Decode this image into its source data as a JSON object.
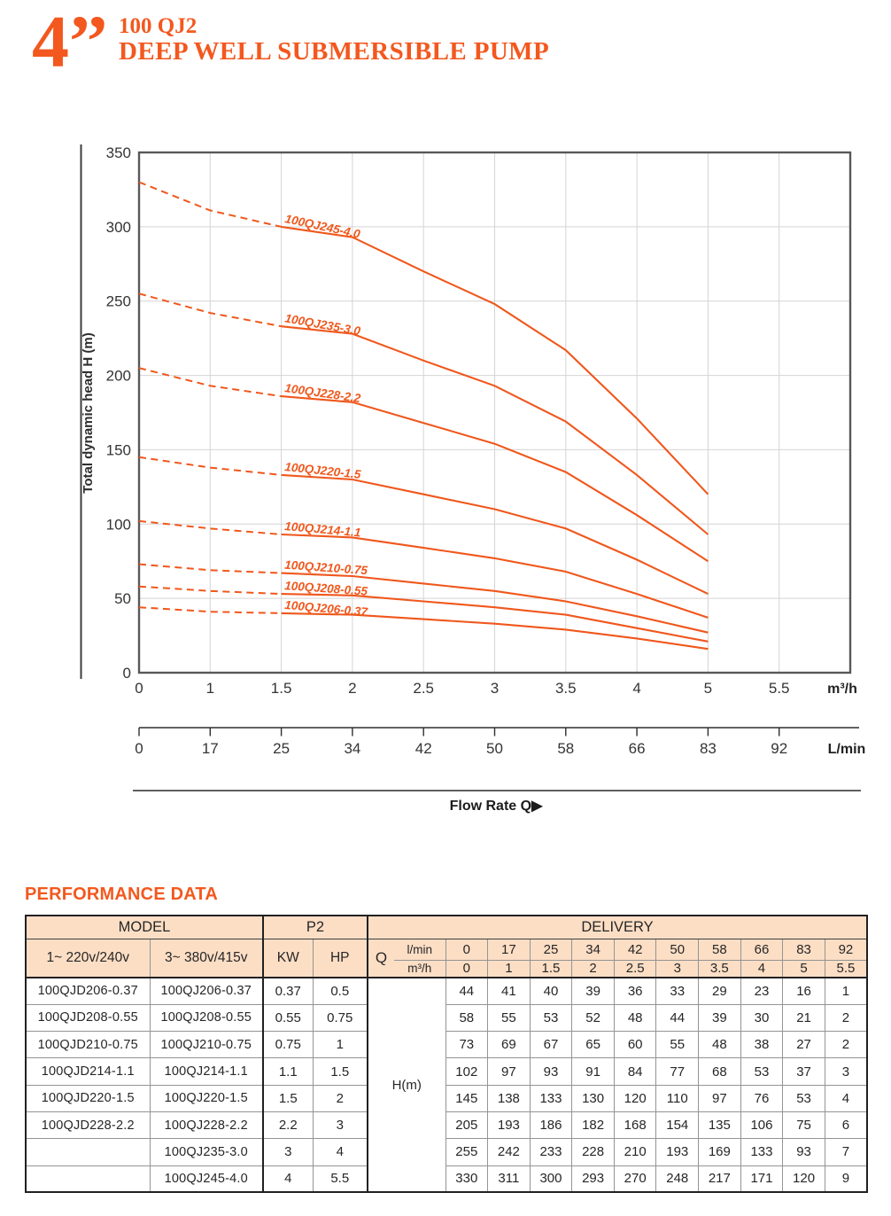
{
  "colors": {
    "accent": "#f3581e",
    "curve": "#f0571c",
    "table_header_bg": "#fcdec5"
  },
  "header": {
    "size_label": "4’’",
    "series": "100 QJ2",
    "title": "DEEP WELL SUBMERSIBLE PUMP"
  },
  "chart_data": {
    "type": "line",
    "title": "",
    "ylabel": "Total dynamic head H (m)",
    "ylim": [
      0,
      350
    ],
    "y_ticks": [
      0,
      50,
      100,
      150,
      200,
      250,
      300,
      350
    ],
    "x_ticks_m3h": [
      "0",
      "1",
      "1.5",
      "2",
      "2.5",
      "3",
      "3.5",
      "4",
      "5",
      "5.5"
    ],
    "x_ticks_lmin": [
      "0",
      "17",
      "25",
      "34",
      "42",
      "50",
      "58",
      "66",
      "83",
      "92"
    ],
    "x_unit_primary": "m³/h",
    "x_unit_secondary": "L/min",
    "flow_label": "Flow Rate Q",
    "grid": true,
    "legend_position": "on-curve",
    "series": [
      {
        "name": "100QJ245-4.0",
        "label_angle": 12,
        "values": [
          330,
          311,
          300,
          293,
          270,
          248,
          217,
          171,
          120
        ]
      },
      {
        "name": "100QJ235-3.0",
        "label_angle": 10,
        "values": [
          255,
          242,
          233,
          228,
          210,
          193,
          169,
          133,
          93
        ]
      },
      {
        "name": "100QJ228-2.2",
        "label_angle": 8,
        "values": [
          205,
          193,
          186,
          182,
          168,
          154,
          135,
          106,
          75
        ]
      },
      {
        "name": "100QJ220-1.5",
        "label_angle": 6,
        "values": [
          145,
          138,
          133,
          130,
          120,
          110,
          97,
          76,
          53
        ]
      },
      {
        "name": "100QJ214-1.1",
        "label_angle": 5,
        "values": [
          102,
          97,
          93,
          91,
          84,
          77,
          68,
          53,
          37
        ]
      },
      {
        "name": "100QJ210-0.75",
        "label_angle": 4,
        "values": [
          73,
          69,
          67,
          65,
          60,
          55,
          48,
          38,
          27
        ]
      },
      {
        "name": "100QJ208-0.55",
        "label_angle": 4,
        "values": [
          58,
          55,
          53,
          52,
          48,
          44,
          39,
          30,
          21
        ]
      },
      {
        "name": "100QJ206-0.37",
        "label_angle": 5,
        "values": [
          44,
          41,
          40,
          39,
          36,
          33,
          29,
          23,
          16
        ]
      }
    ]
  },
  "table": {
    "heading": "PERFORMANCE DATA",
    "headers": {
      "model": "MODEL",
      "p2": "P2",
      "delivery": "DELIVERY",
      "col_single": "1~ 220v/240v",
      "col_three": "3~ 380v/415v",
      "kw": "KW",
      "hp": "HP",
      "q": "Q",
      "lmin": "l/min",
      "m3h": "m³/h",
      "h_m": "H(m)",
      "lmin_values": [
        "0",
        "17",
        "25",
        "34",
        "42",
        "50",
        "58",
        "66",
        "83",
        "92"
      ],
      "m3h_values": [
        "0",
        "1",
        "1.5",
        "2",
        "2.5",
        "3",
        "3.5",
        "4",
        "5",
        "5.5"
      ]
    },
    "rows": [
      {
        "model1": "100QJD206-0.37",
        "model2": "100QJ206-0.37",
        "kw": "0.37",
        "hp": "0.5",
        "h": [
          "44",
          "41",
          "40",
          "39",
          "36",
          "33",
          "29",
          "23",
          "16",
          "1"
        ]
      },
      {
        "model1": "100QJD208-0.55",
        "model2": "100QJ208-0.55",
        "kw": "0.55",
        "hp": "0.75",
        "h": [
          "58",
          "55",
          "53",
          "52",
          "48",
          "44",
          "39",
          "30",
          "21",
          "2"
        ]
      },
      {
        "model1": "100QJD210-0.75",
        "model2": "100QJ210-0.75",
        "kw": "0.75",
        "hp": "1",
        "h": [
          "73",
          "69",
          "67",
          "65",
          "60",
          "55",
          "48",
          "38",
          "27",
          "2"
        ]
      },
      {
        "model1": "100QJD214-1.1",
        "model2": "100QJ214-1.1",
        "kw": "1.1",
        "hp": "1.5",
        "h": [
          "102",
          "97",
          "93",
          "91",
          "84",
          "77",
          "68",
          "53",
          "37",
          "3"
        ]
      },
      {
        "model1": "100QJD220-1.5",
        "model2": "100QJ220-1.5",
        "kw": "1.5",
        "hp": "2",
        "h": [
          "145",
          "138",
          "133",
          "130",
          "120",
          "110",
          "97",
          "76",
          "53",
          "4"
        ]
      },
      {
        "model1": "100QJD228-2.2",
        "model2": "100QJ228-2.2",
        "kw": "2.2",
        "hp": "3",
        "h": [
          "205",
          "193",
          "186",
          "182",
          "168",
          "154",
          "135",
          "106",
          "75",
          "6"
        ]
      },
      {
        "model1": "",
        "model2": "100QJ235-3.0",
        "kw": "3",
        "hp": "4",
        "h": [
          "255",
          "242",
          "233",
          "228",
          "210",
          "193",
          "169",
          "133",
          "93",
          "7"
        ]
      },
      {
        "model1": "",
        "model2": "100QJ245-4.0",
        "kw": "4",
        "hp": "5.5",
        "h": [
          "330",
          "311",
          "300",
          "293",
          "270",
          "248",
          "217",
          "171",
          "120",
          "9"
        ]
      }
    ]
  }
}
